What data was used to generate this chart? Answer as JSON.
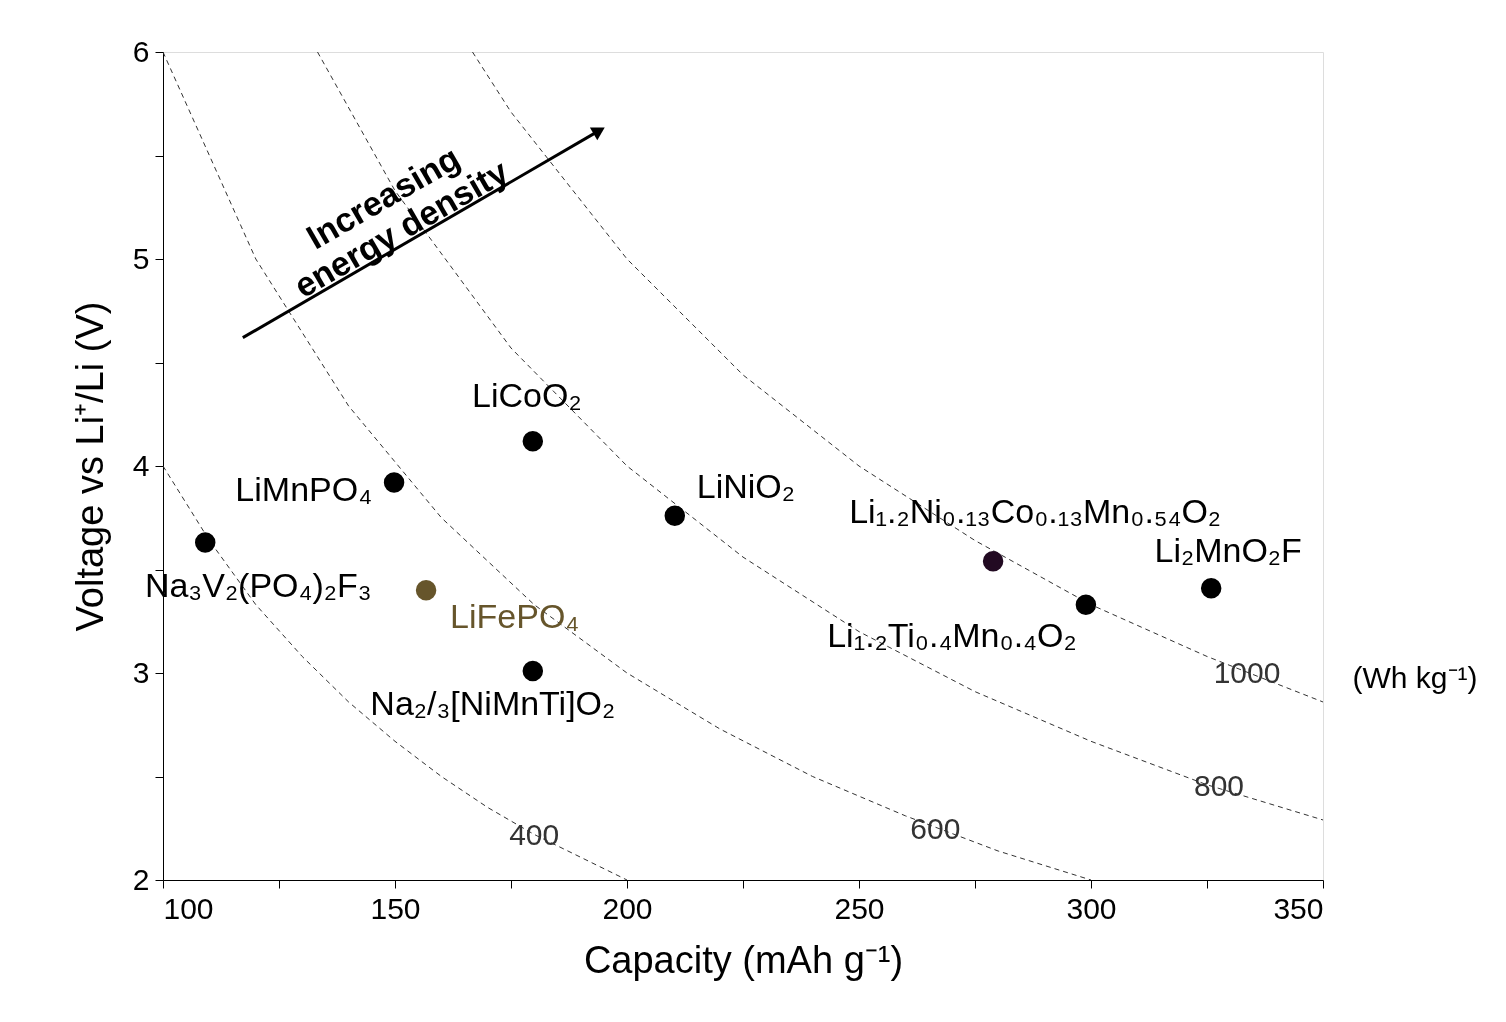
{
  "chart_data": {
    "type": "scatter",
    "xlabel": "Capacity (mAh g⁻¹)",
    "ylabel": "Voltage vs Li⁺/Li (V)",
    "xlim": [
      100,
      350
    ],
    "ylim": [
      2,
      6
    ],
    "xticks": [
      100,
      {
        "value": 125,
        "label": null
      },
      150,
      {
        "value": 175,
        "label": null
      },
      200,
      {
        "value": 225,
        "label": null
      },
      250,
      {
        "value": 275,
        "label": null
      },
      300,
      {
        "value": 325,
        "label": null
      },
      350
    ],
    "yticks": [
      2,
      {
        "value": 2.5,
        "label": null
      },
      3,
      {
        "value": 3.5,
        "label": null
      },
      4,
      {
        "value": 4.5,
        "label": null
      },
      5,
      {
        "value": 5.5,
        "label": null
      },
      6
    ],
    "grid": false,
    "marker": "circle",
    "series": [
      {
        "type": "line",
        "name": "400",
        "color": "#333333",
        "line_style": "dashed",
        "marker": "none",
        "x": [
          100,
          110,
          120,
          130,
          140,
          150,
          160,
          170,
          180,
          190,
          200
        ],
        "values": [
          4,
          3.64,
          3.33,
          3.08,
          2.86,
          2.67,
          2.5,
          2.35,
          2.22,
          2.11,
          2
        ]
      },
      {
        "type": "line",
        "name": "600",
        "color": "#333333",
        "line_style": "dashed",
        "marker": "none",
        "x": [
          100,
          120,
          140,
          160,
          180,
          200,
          220,
          240,
          260,
          280,
          300
        ],
        "values": [
          6,
          5,
          4.29,
          3.75,
          3.33,
          3,
          2.73,
          2.5,
          2.31,
          2.14,
          2
        ]
      },
      {
        "type": "line",
        "name": "800",
        "color": "#333333",
        "line_style": "dashed",
        "marker": "none",
        "x": [
          133.3,
          150,
          175,
          200,
          225,
          250,
          275,
          300,
          325,
          350
        ],
        "values": [
          6,
          5.33,
          4.57,
          4,
          3.56,
          3.2,
          2.91,
          2.67,
          2.46,
          2.29
        ]
      },
      {
        "type": "line",
        "name": "1000",
        "color": "#333333",
        "line_style": "dashed",
        "marker": "none",
        "x": [
          166.7,
          175,
          200,
          225,
          250,
          275,
          300,
          325,
          350
        ],
        "values": [
          6,
          5.71,
          5,
          4.44,
          4,
          3.64,
          3.33,
          3.08,
          2.86
        ]
      },
      {
        "name": "Na₃V₂(PO₄)₂F₃",
        "color": "#000000",
        "x": [
          109.1
        ],
        "values": [
          3.63
        ]
      },
      {
        "name": "LiMnPO₄",
        "color": "#000000",
        "x": [
          149.8
        ],
        "values": [
          3.92
        ]
      },
      {
        "name": "LiFePO₄",
        "color": "#66552b",
        "x": [
          156.7
        ],
        "values": [
          3.4
        ]
      },
      {
        "name": "Na₂/₃[NiMnTi]O₂",
        "color": "#000000",
        "x": [
          179.7
        ],
        "values": [
          3.01
        ]
      },
      {
        "name": "LiCoO₂",
        "color": "#000000",
        "x": [
          179.7
        ],
        "values": [
          4.12
        ]
      },
      {
        "name": "LiNiO₂",
        "color": "#000000",
        "x": [
          210.3
        ],
        "values": [
          3.76
        ]
      },
      {
        "name": "Li₁.₂Ni₀.₁₃Co₀.₁₃Mn₀.₅₄O₂",
        "color": "#220a22",
        "x": [
          278.9
        ],
        "values": [
          3.54
        ]
      },
      {
        "name": "Li₁.₂Ti₀.₄Mn₀.₄O₂",
        "color": "#000000",
        "x": [
          298.9
        ],
        "values": [
          3.33
        ]
      },
      {
        "name": "Li₂MnO₂F",
        "color": "#000000",
        "x": [
          325.9
        ],
        "values": [
          3.41
        ]
      }
    ],
    "annotations": [
      "Increasing\nenergy density",
      "(Wh kg⁻¹)"
    ]
  }
}
